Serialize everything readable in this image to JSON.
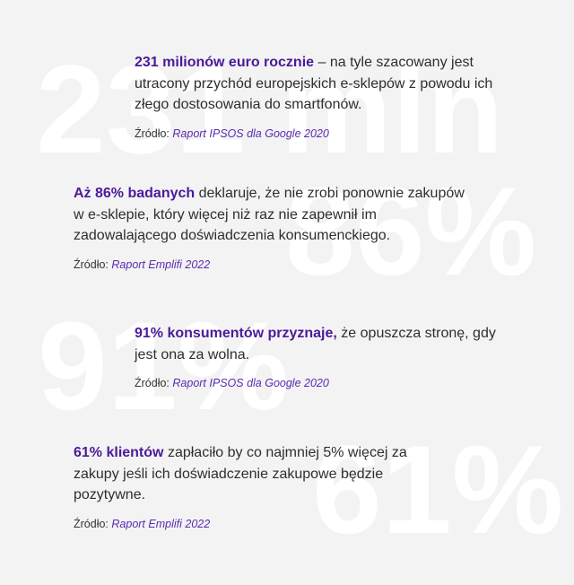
{
  "blocks": [
    {
      "watermark": "231 mln",
      "highlight": "231 milionów euro rocznie",
      "text": "– na tyle szacowany jest utracony przychód europejskich e-sklepów z powodu ich złego dostosowania do smartfonów.",
      "source_label": "Źródło:",
      "source": "Raport IPSOS dla Google 2020"
    },
    {
      "watermark": "86%",
      "highlight": "Aż 86% badanych",
      "text": "deklaruje, że nie zrobi ponownie zakupów w e-sklepie, który więcej niż raz nie zapewnił im zadowalającego doświadczenia konsumenckiego.",
      "source_label": "Źródło:",
      "source": "Raport Emplifi 2022"
    },
    {
      "watermark": "91%",
      "highlight": "91% konsumentów przyznaje,",
      "text": "że opuszcza stronę, gdy jest ona za wolna.",
      "source_label": "Źródło:",
      "source": "Raport IPSOS dla Google 2020"
    },
    {
      "watermark": "61%",
      "highlight": "61% klientów",
      "text": "zapłaciło by co najmniej 5% więcej za zakupy jeśli ich doświadczenie zakupowe będzie pozytywne.",
      "source_label": "Źródło:",
      "source": "Raport Emplifi 2022"
    }
  ]
}
